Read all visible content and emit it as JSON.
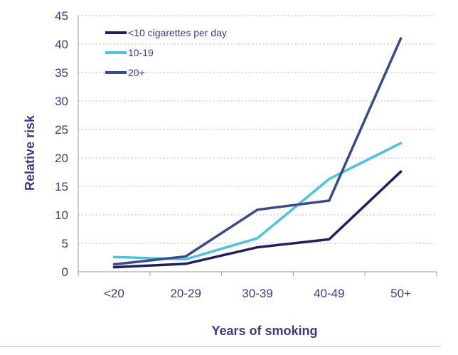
{
  "chart_data": {
    "type": "line",
    "title": "",
    "xlabel": "Years of smoking",
    "ylabel": "Relative risk",
    "ylim": [
      0,
      45
    ],
    "yticks": [
      0,
      5,
      10,
      15,
      20,
      25,
      30,
      35,
      40,
      45
    ],
    "categories": [
      "<20",
      "20-29",
      "30-39",
      "40-49",
      "50+"
    ],
    "grid": true,
    "legend_position": "top-left",
    "series": [
      {
        "name": "<10 cigarettes per day",
        "color": "#1e1f5c",
        "values": [
          0.8,
          1.4,
          4.3,
          5.7,
          17.6
        ]
      },
      {
        "name": "10-19",
        "color": "#4ec3dc",
        "values": [
          2.6,
          2.2,
          5.9,
          16.3,
          22.6
        ]
      },
      {
        "name": "20+",
        "color": "#3a4a8b",
        "values": [
          1.3,
          2.7,
          10.9,
          12.5,
          41.0
        ]
      }
    ]
  }
}
